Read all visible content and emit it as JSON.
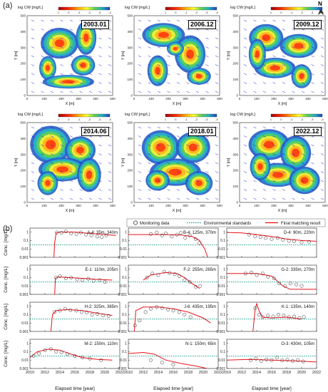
{
  "panel_a_label": "(a)",
  "panel_b_label": "(b)",
  "north_label": "N",
  "maps": {
    "colorbar_label": "log C",
    "colorbar_sub": "W",
    "colorbar_unit": "[mg/L]",
    "colorbar_ticks": [
      "1",
      "0",
      "-1",
      "-2",
      "-3",
      "-4"
    ],
    "x_axis_label": "X [m]",
    "y_axis_label": "Y [m]",
    "x_ticks": [
      "0",
      "100",
      "200",
      "300",
      "400",
      "500"
    ],
    "y_ticks": [
      "0",
      "100",
      "200",
      "300",
      "400",
      "500"
    ],
    "dates": [
      "2003.01",
      "2006.12",
      "2009.12",
      "2014.06",
      "2018.01",
      "2022.12"
    ]
  },
  "chart_data": {
    "type": "line",
    "legend": {
      "placement": "top",
      "entries": [
        "Monitoring data",
        "Environmental standards",
        "Final matching result"
      ],
      "colors": {
        "monitoring": "#222222",
        "standard": "#1a9a8a",
        "result": "#e8121a"
      }
    },
    "ylabel": "Conc. [mg/L]",
    "xlabel": "Elapsed time [year]",
    "x_ticks": [
      "2010",
      "2012",
      "2014",
      "2016",
      "2018",
      "2020",
      "2022"
    ],
    "xlim": [
      2010,
      2022
    ],
    "y_scale": "log",
    "ylim": [
      0.001,
      3
    ],
    "y_ticks": [
      "0.001",
      "0.01",
      "0.1",
      "1"
    ],
    "environmental_standard": 0.03,
    "wells": [
      {
        "label": "A-4: 35m, 340m",
        "result": [
          [
            2013.2,
            0.001
          ],
          [
            2013.3,
            0.05
          ],
          [
            2013.5,
            0.8
          ],
          [
            2014,
            1.0
          ],
          [
            2016,
            1.0
          ],
          [
            2018,
            0.7
          ],
          [
            2020,
            0.5
          ],
          [
            2021.5,
            0.4
          ]
        ],
        "data": [
          [
            2013.6,
            0.9
          ],
          [
            2014.2,
            0.8
          ],
          [
            2014.8,
            1.2
          ],
          [
            2015.5,
            0.7
          ],
          [
            2016.2,
            0.6
          ],
          [
            2016.8,
            0.9
          ],
          [
            2017.5,
            0.5
          ],
          [
            2018.2,
            0.4
          ],
          [
            2019,
            0.3
          ],
          [
            2019.6,
            0.25
          ],
          [
            2020.2,
            0.4
          ]
        ]
      },
      {
        "label": "B-4: 125m, 370m",
        "result": [
          [
            2010,
            0.5
          ],
          [
            2015,
            0.5
          ],
          [
            2017,
            0.45
          ],
          [
            2018.5,
            0.3
          ],
          [
            2019.5,
            0.1
          ],
          [
            2020.2,
            0.01
          ],
          [
            2020.6,
            0.001
          ]
        ],
        "data": [
          [
            2013,
            0.6
          ],
          [
            2013.8,
            0.9
          ],
          [
            2014.5,
            0.4
          ],
          [
            2015,
            0.7
          ],
          [
            2015.8,
            0.3
          ],
          [
            2016.5,
            0.5
          ],
          [
            2017,
            0.8
          ],
          [
            2017.6,
            0.2
          ],
          [
            2018.2,
            0.4
          ],
          [
            2019,
            0.15
          ],
          [
            2019.5,
            0.05
          ]
        ]
      },
      {
        "label": "D-4: 90m, 220m",
        "result": [
          [
            2010,
            0.9
          ],
          [
            2012,
            0.8
          ],
          [
            2014,
            0.5
          ],
          [
            2016,
            0.3
          ],
          [
            2018,
            0.15
          ],
          [
            2020,
            0.1
          ],
          [
            2022,
            0.08
          ]
        ],
        "data": [
          [
            2013,
            0.5
          ],
          [
            2013.8,
            0.3
          ],
          [
            2014.5,
            0.25
          ],
          [
            2015.2,
            0.2
          ],
          [
            2016,
            0.15
          ],
          [
            2016.8,
            0.2
          ],
          [
            2017.5,
            0.12
          ],
          [
            2018.3,
            0.09
          ],
          [
            2019,
            0.08
          ],
          [
            2020,
            0.06
          ],
          [
            2021,
            0.07
          ]
        ]
      },
      {
        "label": "E-1: 110m, 205m",
        "result": [
          [
            2013.3,
            0.001
          ],
          [
            2013.4,
            0.08
          ],
          [
            2013.8,
            0.12
          ],
          [
            2015,
            0.1
          ],
          [
            2017,
            0.08
          ],
          [
            2019,
            0.06
          ],
          [
            2021,
            0.05
          ]
        ],
        "data": [
          [
            2013.5,
            0.1
          ],
          [
            2014,
            0.15
          ],
          [
            2014.8,
            0.08
          ],
          [
            2015.5,
            0.1
          ],
          [
            2016.3,
            0.06
          ],
          [
            2017,
            0.05
          ],
          [
            2017.8,
            0.07
          ],
          [
            2018.5,
            0.04
          ],
          [
            2019.3,
            0.05
          ],
          [
            2020,
            0.03
          ]
        ]
      },
      {
        "label": "F-2: 255m, 265m",
        "result": [
          [
            2012,
            0.05
          ],
          [
            2013,
            0.2
          ],
          [
            2015,
            0.4
          ],
          [
            2016.5,
            0.3
          ],
          [
            2017.5,
            0.1
          ],
          [
            2018.5,
            0.02
          ],
          [
            2019.5,
            0.005
          ]
        ],
        "data": [
          [
            2012.5,
            0.1
          ],
          [
            2013.2,
            0.3
          ],
          [
            2014,
            0.2
          ],
          [
            2014.8,
            0.5
          ],
          [
            2015.5,
            0.35
          ],
          [
            2016.2,
            0.25
          ],
          [
            2016.8,
            0.15
          ],
          [
            2017.5,
            0.05
          ],
          [
            2018.2,
            0.03
          ],
          [
            2019,
            0.008
          ],
          [
            2019.6,
            0.01
          ]
        ]
      },
      {
        "label": "G-2: 335m, 270m",
        "result": [
          [
            2010,
            0.3
          ],
          [
            2014,
            0.3
          ],
          [
            2016,
            0.15
          ],
          [
            2017.5,
            0.01
          ],
          [
            2018.5,
            0.004
          ],
          [
            2022,
            0.004
          ]
        ],
        "data": [
          [
            2012.5,
            0.3
          ],
          [
            2013.3,
            0.4
          ],
          [
            2014,
            0.2
          ],
          [
            2014.8,
            0.3
          ],
          [
            2015.5,
            0.12
          ],
          [
            2016.3,
            0.08
          ],
          [
            2017,
            0.02
          ],
          [
            2017.8,
            0.01
          ],
          [
            2018.5,
            0.02
          ],
          [
            2019.3,
            0.015
          ],
          [
            2020,
            0.01
          ]
        ]
      },
      {
        "label": "H-2: 325m, 385m",
        "result": [
          [
            2012.8,
            0.001
          ],
          [
            2013,
            0.1
          ],
          [
            2013.5,
            0.3
          ],
          [
            2015,
            0.4
          ],
          [
            2017,
            0.3
          ],
          [
            2019,
            0.15
          ],
          [
            2021,
            0.08
          ]
        ],
        "data": [
          [
            2013.3,
            0.2
          ],
          [
            2014,
            0.3
          ],
          [
            2014.7,
            0.5
          ],
          [
            2015.4,
            0.35
          ],
          [
            2016.2,
            0.3
          ],
          [
            2016.9,
            0.2
          ],
          [
            2017.6,
            0.18
          ],
          [
            2018.3,
            0.1
          ],
          [
            2019,
            0.12
          ],
          [
            2019.8,
            0.08
          ],
          [
            2020.5,
            0.07
          ]
        ]
      },
      {
        "label": "J-6: 435m, 195m",
        "result": [
          [
            2010.8,
            0.001
          ],
          [
            2011,
            0.3
          ],
          [
            2012,
            0.8
          ],
          [
            2014,
            0.8
          ],
          [
            2016,
            0.5
          ],
          [
            2018,
            0.2
          ],
          [
            2020,
            0.04
          ],
          [
            2021,
            0.01
          ]
        ],
        "data": [
          [
            2010.9,
            0.005
          ],
          [
            2011.5,
            0.02
          ],
          [
            2012.3,
            0.2
          ],
          [
            2013,
            0.5
          ],
          [
            2013.8,
            0.8
          ],
          [
            2014.5,
            0.6
          ],
          [
            2015.3,
            0.4
          ],
          [
            2016,
            0.3
          ],
          [
            2016.8,
            0.2
          ],
          [
            2017.5,
            0.1
          ],
          [
            2018.3,
            0.05
          ]
        ]
      },
      {
        "label": "K-1: 135m, 140m",
        "result": [
          [
            2013.5,
            0.001
          ],
          [
            2013.8,
            0.5
          ],
          [
            2014,
            2.0
          ],
          [
            2014.3,
            0.3
          ],
          [
            2014.8,
            0.05
          ],
          [
            2016,
            0.04
          ],
          [
            2018,
            0.05
          ],
          [
            2020,
            0.03
          ]
        ],
        "data": [
          [
            2013.8,
            0.6
          ],
          [
            2014.3,
            0.1
          ],
          [
            2014.8,
            0.05
          ],
          [
            2015.5,
            0.08
          ],
          [
            2016.2,
            0.06
          ],
          [
            2016.9,
            0.1
          ],
          [
            2017.6,
            0.08
          ],
          [
            2018.3,
            0.05
          ],
          [
            2019,
            0.06
          ],
          [
            2019.7,
            0.04
          ],
          [
            2020.3,
            0.05
          ]
        ]
      },
      {
        "label": "M-2: 150m, 110m",
        "result": [
          [
            2010,
            0.02
          ],
          [
            2011,
            0.1
          ],
          [
            2012.5,
            0.2
          ],
          [
            2014,
            0.15
          ],
          [
            2015.5,
            0.05
          ],
          [
            2017,
            0.02
          ],
          [
            2019,
            0.012
          ],
          [
            2021,
            0.01
          ]
        ],
        "data": [
          [
            2010.5,
            0.03
          ],
          [
            2011.2,
            0.06
          ],
          [
            2012,
            0.15
          ],
          [
            2012.8,
            0.2
          ],
          [
            2013.5,
            0.1
          ],
          [
            2014.2,
            0.08
          ],
          [
            2015,
            0.05
          ],
          [
            2016,
            0.03
          ],
          [
            2017,
            0.02
          ],
          [
            2018,
            0.015
          ],
          [
            2019.5,
            0.01
          ]
        ]
      },
      {
        "label": "N-1: 150m, 65m",
        "result": [
          [
            2010,
            0.06
          ],
          [
            2012,
            0.08
          ],
          [
            2013.5,
            0.05
          ],
          [
            2015,
            0.01
          ],
          [
            2017,
            0.004
          ],
          [
            2019,
            0.002
          ],
          [
            2020.5,
            0.001
          ]
        ],
        "data": [
          [
            2013,
            0.01
          ],
          [
            2014.5,
            0.005
          ],
          [
            2016,
            0.003
          ]
        ]
      },
      {
        "label": "O-3: 430m, 105m",
        "result": [
          [
            2010,
            0.01
          ],
          [
            2013,
            0.012
          ],
          [
            2016,
            0.01
          ],
          [
            2019,
            0.008
          ],
          [
            2022,
            0.006
          ]
        ],
        "data": [
          [
            2013.2,
            0.01
          ],
          [
            2013.9,
            0.015
          ],
          [
            2014.6,
            0.008
          ],
          [
            2015.3,
            0.012
          ],
          [
            2016,
            0.01
          ],
          [
            2016.7,
            0.02
          ],
          [
            2017.4,
            0.009
          ],
          [
            2018.1,
            0.011
          ],
          [
            2018.8,
            0.008
          ],
          [
            2019.5,
            0.01
          ],
          [
            2020.2,
            0.007
          ]
        ]
      }
    ]
  }
}
